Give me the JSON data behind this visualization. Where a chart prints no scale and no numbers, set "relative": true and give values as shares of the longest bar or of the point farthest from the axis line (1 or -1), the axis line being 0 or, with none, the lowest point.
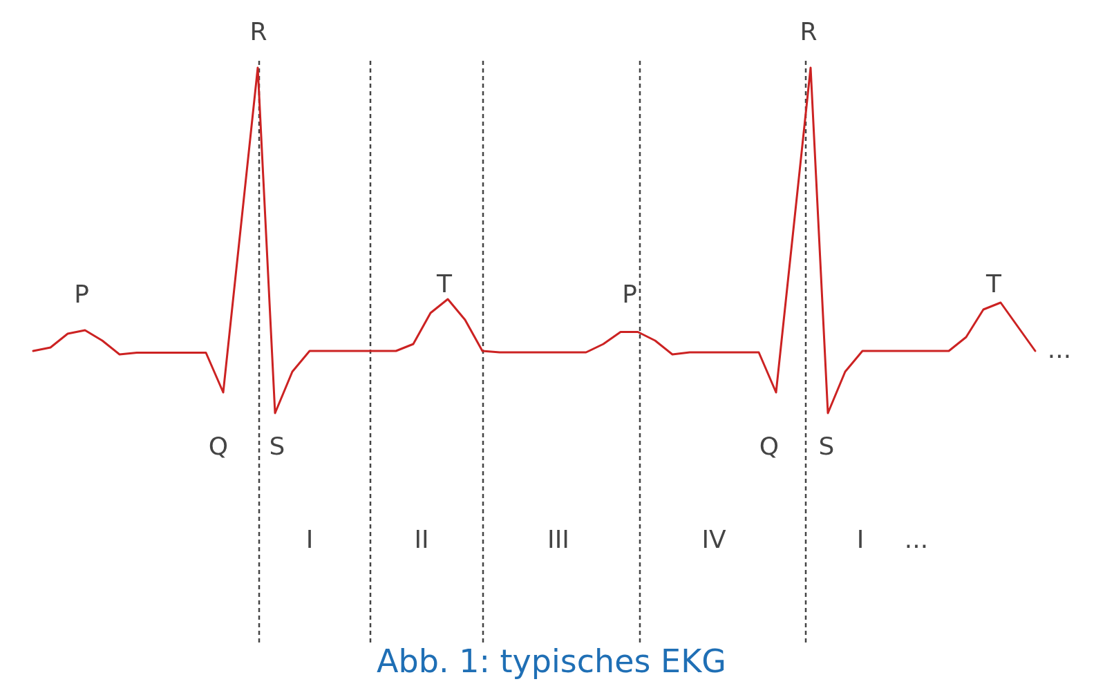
{
  "chart_data": {
    "type": "line",
    "relative": true,
    "title": "Abb. 1: typisches EKG",
    "categories": [
      null,
      null,
      null,
      null,
      null,
      null,
      null,
      null,
      null,
      null,
      null,
      null,
      null,
      null,
      null,
      null,
      null,
      null,
      null,
      null,
      null,
      null,
      null,
      null,
      null,
      null,
      null,
      null,
      null,
      null,
      null,
      null,
      null,
      null,
      null,
      null,
      null,
      null,
      null,
      null,
      null,
      null,
      null,
      null,
      null,
      null,
      null,
      null,
      null,
      null,
      null,
      null,
      null,
      null,
      null,
      null,
      null,
      null,
      null
    ],
    "series": [
      {
        "color": "#cc2222",
        "values": [
          0.18,
          0.19,
          0.23,
          0.24,
          0.21,
          0.17,
          0.175,
          0.175,
          0.175,
          0.175,
          0.175,
          0.06,
          0.53,
          1,
          0,
          0.12,
          0.18,
          0.18,
          0.18,
          0.18,
          0.18,
          0.18,
          0.2,
          0.29,
          0.33,
          0.27,
          0.18,
          0.176,
          0.176,
          0.176,
          0.176,
          0.176,
          0.176,
          0.2,
          0.235,
          0.235,
          0.21,
          0.17,
          0.176,
          0.176,
          0.176,
          0.176,
          0.176,
          0.06,
          0.53,
          1,
          0,
          0.12,
          0.18,
          0.18,
          0.18,
          0.18,
          0.18,
          0.18,
          0.22,
          0.3,
          0.32,
          0.25,
          0.18
        ]
      }
    ],
    "line_style": "solid",
    "grid": "x",
    "annotations": [
      "P",
      "R",
      "Q",
      "S",
      "T",
      "P",
      "R",
      "Q",
      "S",
      "T",
      "...",
      "I",
      "II",
      "III",
      "IV",
      "I",
      "..."
    ]
  }
}
